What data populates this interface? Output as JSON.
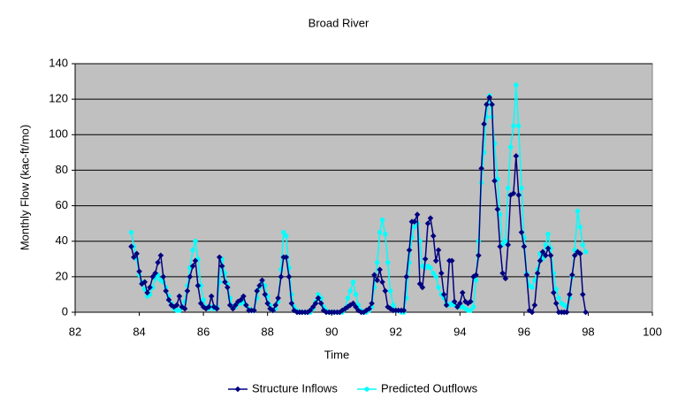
{
  "chart_data": {
    "type": "line",
    "title": "Broad River",
    "x_label": "Time",
    "y_label": "Monthly Flow (kac-ft/mo)",
    "x": [
      83.75,
      83.83,
      83.92,
      84,
      84.08,
      84.17,
      84.25,
      84.33,
      84.42,
      84.5,
      84.58,
      84.67,
      84.75,
      84.83,
      84.92,
      85,
      85.08,
      85.17,
      85.25,
      85.33,
      85.42,
      85.5,
      85.58,
      85.67,
      85.75,
      85.83,
      85.92,
      86,
      86.08,
      86.17,
      86.25,
      86.33,
      86.42,
      86.5,
      86.58,
      86.67,
      86.75,
      86.83,
      86.92,
      87,
      87.08,
      87.17,
      87.25,
      87.33,
      87.42,
      87.5,
      87.58,
      87.67,
      87.75,
      87.83,
      87.92,
      88,
      88.08,
      88.17,
      88.25,
      88.33,
      88.42,
      88.5,
      88.58,
      88.67,
      88.75,
      88.83,
      88.92,
      89,
      89.08,
      89.17,
      89.25,
      89.33,
      89.42,
      89.5,
      89.58,
      89.67,
      89.75,
      89.83,
      89.92,
      90,
      90.08,
      90.17,
      90.25,
      90.33,
      90.42,
      90.5,
      90.58,
      90.67,
      90.75,
      90.83,
      90.92,
      91,
      91.08,
      91.17,
      91.25,
      91.33,
      91.42,
      91.5,
      91.58,
      91.67,
      91.75,
      91.83,
      91.92,
      92,
      92.08,
      92.17,
      92.25,
      92.33,
      92.42,
      92.5,
      92.58,
      92.67,
      92.75,
      92.83,
      92.92,
      93,
      93.08,
      93.17,
      93.25,
      93.33,
      93.42,
      93.5,
      93.58,
      93.67,
      93.75,
      93.83,
      93.92,
      94,
      94.08,
      94.17,
      94.25,
      94.33,
      94.42,
      94.5,
      94.58,
      94.67,
      94.75,
      94.83,
      94.92,
      95,
      95.08,
      95.17,
      95.25,
      95.33,
      95.42,
      95.5,
      95.58,
      95.67,
      95.75,
      95.83,
      95.92,
      96,
      96.08,
      96.17,
      96.25,
      96.33,
      96.42,
      96.5,
      96.58,
      96.67,
      96.75,
      96.83,
      96.92,
      97,
      97.08,
      97.17,
      97.25,
      97.33,
      97.42,
      97.5,
      97.58,
      97.67,
      97.75,
      97.83,
      97.92
    ],
    "series": [
      {
        "name": "Structure Inflows",
        "color": "#000080",
        "marker": "diamond",
        "values": [
          37,
          31,
          33,
          23,
          16,
          17,
          11,
          14,
          20,
          22,
          28,
          32,
          20,
          12,
          7,
          4,
          3,
          4,
          9,
          3,
          2,
          12,
          20,
          26,
          29,
          15,
          5,
          3,
          2,
          3,
          9,
          3,
          2,
          31,
          26,
          17,
          14,
          4,
          2,
          4,
          6,
          7,
          9,
          4,
          1,
          1,
          1,
          12,
          15,
          18,
          10,
          5,
          2,
          1,
          4,
          8,
          20,
          31,
          31,
          20,
          5,
          1,
          0,
          0,
          0,
          0,
          0,
          1,
          3,
          5,
          8,
          5,
          1,
          0,
          0,
          0,
          0,
          0,
          0,
          1,
          2,
          3,
          4,
          5,
          3,
          1,
          0,
          0,
          1,
          2,
          5,
          21,
          18,
          24,
          17,
          12,
          3,
          2,
          1,
          1,
          1,
          1,
          1,
          20,
          35,
          51,
          51,
          55,
          16,
          14,
          30,
          50,
          53,
          43,
          29,
          35,
          22,
          10,
          4,
          29,
          29,
          6,
          3,
          5,
          11,
          6,
          5,
          6,
          20,
          21,
          32,
          81,
          106,
          117,
          121,
          117,
          74,
          58,
          37,
          22,
          19,
          38,
          66,
          67,
          88,
          66,
          45,
          37,
          21,
          1,
          0,
          4,
          22,
          29,
          34,
          32,
          36,
          32,
          11,
          5,
          0,
          0,
          0,
          0,
          10,
          21,
          32,
          34,
          33,
          10,
          0
        ]
      },
      {
        "name": "Predicted Outflows",
        "color": "#00FFFF",
        "marker": "circle",
        "values": [
          45,
          37,
          30,
          21,
          17,
          13,
          9,
          10,
          14,
          19,
          21,
          18,
          17,
          14,
          9,
          5,
          2,
          1,
          1,
          3,
          6,
          15,
          25,
          35,
          40,
          30,
          15,
          7,
          3,
          2,
          3,
          2,
          3,
          17,
          30,
          22,
          16,
          8,
          3,
          3,
          5,
          5,
          6,
          4,
          2,
          1,
          1,
          8,
          14,
          17,
          15,
          9,
          4,
          1,
          2,
          6,
          24,
          45,
          43,
          25,
          10,
          3,
          1,
          0,
          0,
          0,
          0,
          0,
          2,
          6,
          10,
          8,
          3,
          1,
          0,
          0,
          0,
          0,
          0,
          0,
          2,
          8,
          12,
          17,
          10,
          4,
          1,
          0,
          0,
          1,
          3,
          14,
          28,
          45,
          52,
          44,
          28,
          12,
          4,
          1,
          1,
          0,
          0,
          8,
          28,
          42,
          48,
          50,
          40,
          26,
          25,
          26,
          25,
          22,
          20,
          14,
          10,
          8,
          5,
          4,
          5,
          4,
          3,
          3,
          3,
          2,
          1,
          1,
          3,
          18,
          40,
          73,
          90,
          110,
          122,
          110,
          95,
          75,
          55,
          38,
          40,
          70,
          93,
          105,
          128,
          105,
          70,
          42,
          22,
          15,
          14,
          18,
          24,
          33,
          30,
          38,
          44,
          36,
          22,
          13,
          8,
          5,
          4,
          3,
          8,
          20,
          35,
          57,
          48,
          38,
          34
        ]
      }
    ],
    "xlim": [
      82,
      100
    ],
    "xticks": [
      82,
      84,
      86,
      88,
      90,
      92,
      94,
      96,
      98,
      100
    ],
    "ylim": [
      0,
      140
    ],
    "yticks": [
      0,
      20,
      40,
      60,
      80,
      100,
      120,
      140
    ],
    "grid": true,
    "plot_background": "#C0C0C0",
    "legend": "bottom"
  }
}
